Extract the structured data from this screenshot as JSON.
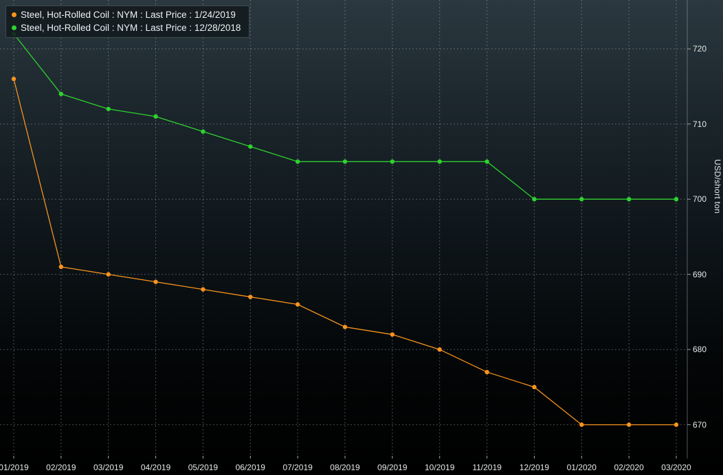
{
  "chart_data": {
    "type": "line",
    "title": "",
    "y_axis_label": "USD/short ton",
    "x_categories": [
      "01/2019",
      "02/2019",
      "03/2019",
      "04/2019",
      "05/2019",
      "06/2019",
      "07/2019",
      "08/2019",
      "09/2019",
      "10/2019",
      "11/2019",
      "12/2019",
      "01/2020",
      "02/2020",
      "03/2020"
    ],
    "y_ticks": [
      670,
      680,
      690,
      700,
      710,
      720
    ],
    "ylim": [
      665.5,
      726.5
    ],
    "grid": "dashed-both-axes",
    "legend_position": "top-left",
    "series": [
      {
        "name": "Steel, Hot-Rolled Coil : NYM : Last Price : 1/24/2019",
        "color": "#f7941e",
        "values": [
          716,
          691,
          690,
          689,
          688,
          687,
          686,
          683,
          682,
          680,
          677,
          675,
          670,
          670,
          670
        ]
      },
      {
        "name": "Steel, Hot-Rolled Coil : NYM : Last Price : 12/28/2018",
        "color": "#2ed32e",
        "values": [
          722,
          714,
          712,
          711,
          709,
          707,
          705,
          705,
          705,
          705,
          705,
          700,
          700,
          700,
          700
        ]
      }
    ]
  },
  "colors": {
    "background_top": "#2b383f",
    "background_bottom": "#000000",
    "grid": "#aebec4",
    "tick_text": "#e3e8e9",
    "legend_background": "#121a1e",
    "legend_border": "#3c4a50"
  }
}
